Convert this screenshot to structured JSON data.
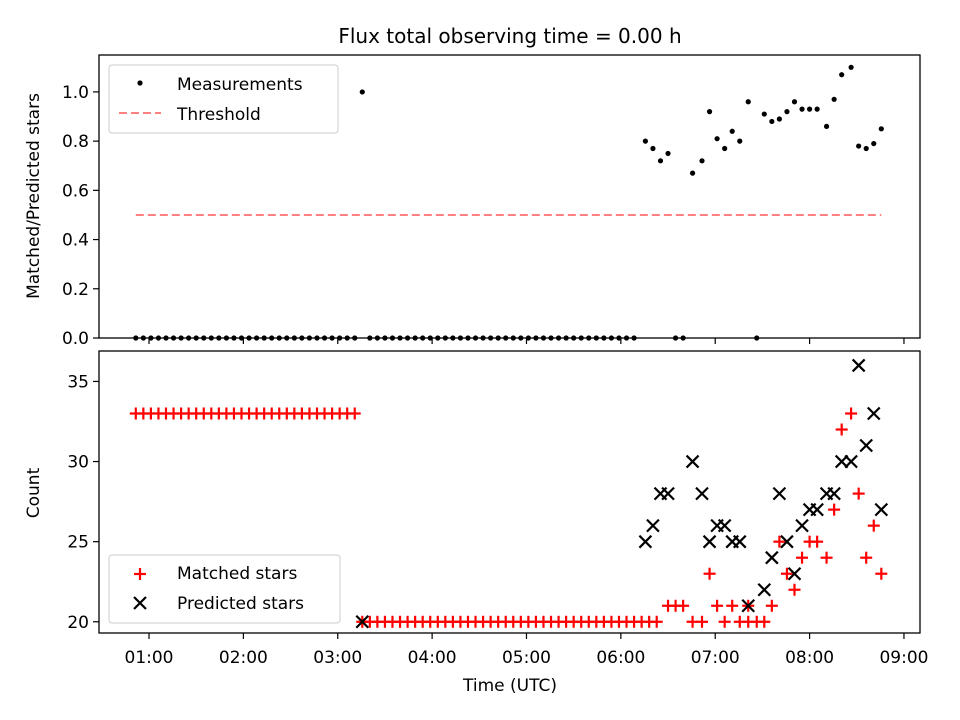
{
  "chart_data": {
    "title": "Flux total observing time = 0.00 h",
    "xlabel": "Time (UTC)",
    "x_unit": "hours UTC",
    "xlim": [
      0.47,
      9.17
    ],
    "x_ticks": [
      {
        "value": 1,
        "label": "01:00"
      },
      {
        "value": 2,
        "label": "02:00"
      },
      {
        "value": 3,
        "label": "03:00"
      },
      {
        "value": 4,
        "label": "04:00"
      },
      {
        "value": 5,
        "label": "05:00"
      },
      {
        "value": 6,
        "label": "06:00"
      },
      {
        "value": 7,
        "label": "07:00"
      },
      {
        "value": 8,
        "label": "08:00"
      },
      {
        "value": 9,
        "label": "09:00"
      }
    ],
    "panels": [
      {
        "type": "scatter",
        "ylabel": "Matched/Predicted stars",
        "ylim": [
          0,
          1.15
        ],
        "y_ticks": [
          "0.0",
          "0.2",
          "0.4",
          "0.6",
          "0.8",
          "1.0"
        ],
        "legend": "top-left",
        "series": [
          {
            "name": "Measurements",
            "kind": "scatter",
            "color": "#000000",
            "points": [
              [
                0.86,
                0
              ],
              [
                0.94,
                0
              ],
              [
                1.02,
                0
              ],
              [
                1.1,
                0
              ],
              [
                1.18,
                0
              ],
              [
                1.26,
                0
              ],
              [
                1.34,
                0
              ],
              [
                1.42,
                0
              ],
              [
                1.5,
                0
              ],
              [
                1.58,
                0
              ],
              [
                1.66,
                0
              ],
              [
                1.74,
                0
              ],
              [
                1.82,
                0
              ],
              [
                1.9,
                0
              ],
              [
                1.98,
                0
              ],
              [
                2.06,
                0
              ],
              [
                2.14,
                0
              ],
              [
                2.22,
                0
              ],
              [
                2.3,
                0
              ],
              [
                2.38,
                0
              ],
              [
                2.46,
                0
              ],
              [
                2.54,
                0
              ],
              [
                2.62,
                0
              ],
              [
                2.7,
                0
              ],
              [
                2.78,
                0
              ],
              [
                2.86,
                0
              ],
              [
                2.94,
                0
              ],
              [
                3.02,
                0
              ],
              [
                3.1,
                0
              ],
              [
                3.18,
                0
              ],
              [
                3.26,
                1.0
              ],
              [
                3.34,
                0
              ],
              [
                3.42,
                0
              ],
              [
                3.5,
                0
              ],
              [
                3.58,
                0
              ],
              [
                3.66,
                0
              ],
              [
                3.74,
                0
              ],
              [
                3.82,
                0
              ],
              [
                3.9,
                0
              ],
              [
                3.98,
                0
              ],
              [
                4.06,
                0
              ],
              [
                4.14,
                0
              ],
              [
                4.22,
                0
              ],
              [
                4.3,
                0
              ],
              [
                4.38,
                0
              ],
              [
                4.46,
                0
              ],
              [
                4.54,
                0
              ],
              [
                4.62,
                0
              ],
              [
                4.7,
                0
              ],
              [
                4.78,
                0
              ],
              [
                4.86,
                0
              ],
              [
                4.94,
                0
              ],
              [
                5.02,
                0
              ],
              [
                5.1,
                0
              ],
              [
                5.18,
                0
              ],
              [
                5.26,
                0
              ],
              [
                5.34,
                0
              ],
              [
                5.42,
                0
              ],
              [
                5.5,
                0
              ],
              [
                5.58,
                0
              ],
              [
                5.66,
                0
              ],
              [
                5.74,
                0
              ],
              [
                5.82,
                0
              ],
              [
                5.9,
                0
              ],
              [
                5.98,
                0
              ],
              [
                6.06,
                0
              ],
              [
                6.14,
                0
              ],
              [
                6.26,
                0.8
              ],
              [
                6.34,
                0.77
              ],
              [
                6.42,
                0.72
              ],
              [
                6.5,
                0.75
              ],
              [
                6.58,
                0
              ],
              [
                6.66,
                0
              ],
              [
                6.76,
                0.67
              ],
              [
                6.86,
                0.72
              ],
              [
                6.94,
                0.92
              ],
              [
                7.02,
                0.81
              ],
              [
                7.1,
                0.77
              ],
              [
                7.18,
                0.84
              ],
              [
                7.26,
                0.8
              ],
              [
                7.35,
                0.96
              ],
              [
                7.44,
                0
              ],
              [
                7.52,
                0.91
              ],
              [
                7.6,
                0.88
              ],
              [
                7.68,
                0.89
              ],
              [
                7.76,
                0.92
              ],
              [
                7.84,
                0.96
              ],
              [
                7.92,
                0.93
              ],
              [
                8.0,
                0.93
              ],
              [
                8.08,
                0.93
              ],
              [
                8.18,
                0.86
              ],
              [
                8.26,
                0.97
              ],
              [
                8.34,
                1.07
              ],
              [
                8.44,
                1.1
              ],
              [
                8.52,
                0.78
              ],
              [
                8.6,
                0.77
              ],
              [
                8.68,
                0.79
              ],
              [
                8.76,
                0.85
              ]
            ]
          },
          {
            "name": "Threshold",
            "kind": "dashed-line",
            "color": "#ff8080",
            "points": [
              [
                0.86,
                0.5
              ],
              [
                8.76,
                0.5
              ]
            ]
          }
        ]
      },
      {
        "type": "scatter",
        "ylabel": "Count",
        "ylim": [
          19.3,
          36.9
        ],
        "y_ticks": [
          "20",
          "25",
          "30",
          "35"
        ],
        "legend": "bottom-left",
        "series": [
          {
            "name": "Matched stars",
            "kind": "plus",
            "color": "#ff0000",
            "points": [
              [
                0.86,
                33
              ],
              [
                0.94,
                33
              ],
              [
                1.02,
                33
              ],
              [
                1.1,
                33
              ],
              [
                1.18,
                33
              ],
              [
                1.26,
                33
              ],
              [
                1.34,
                33
              ],
              [
                1.42,
                33
              ],
              [
                1.5,
                33
              ],
              [
                1.58,
                33
              ],
              [
                1.66,
                33
              ],
              [
                1.74,
                33
              ],
              [
                1.82,
                33
              ],
              [
                1.9,
                33
              ],
              [
                1.98,
                33
              ],
              [
                2.06,
                33
              ],
              [
                2.14,
                33
              ],
              [
                2.22,
                33
              ],
              [
                2.3,
                33
              ],
              [
                2.38,
                33
              ],
              [
                2.46,
                33
              ],
              [
                2.54,
                33
              ],
              [
                2.62,
                33
              ],
              [
                2.7,
                33
              ],
              [
                2.78,
                33
              ],
              [
                2.86,
                33
              ],
              [
                2.94,
                33
              ],
              [
                3.02,
                33
              ],
              [
                3.1,
                33
              ],
              [
                3.18,
                33
              ],
              [
                3.26,
                20
              ],
              [
                3.34,
                20
              ],
              [
                3.42,
                20
              ],
              [
                3.5,
                20
              ],
              [
                3.58,
                20
              ],
              [
                3.66,
                20
              ],
              [
                3.74,
                20
              ],
              [
                3.82,
                20
              ],
              [
                3.9,
                20
              ],
              [
                3.98,
                20
              ],
              [
                4.06,
                20
              ],
              [
                4.14,
                20
              ],
              [
                4.22,
                20
              ],
              [
                4.3,
                20
              ],
              [
                4.38,
                20
              ],
              [
                4.46,
                20
              ],
              [
                4.54,
                20
              ],
              [
                4.62,
                20
              ],
              [
                4.7,
                20
              ],
              [
                4.78,
                20
              ],
              [
                4.86,
                20
              ],
              [
                4.94,
                20
              ],
              [
                5.02,
                20
              ],
              [
                5.1,
                20
              ],
              [
                5.18,
                20
              ],
              [
                5.26,
                20
              ],
              [
                5.34,
                20
              ],
              [
                5.42,
                20
              ],
              [
                5.5,
                20
              ],
              [
                5.58,
                20
              ],
              [
                5.66,
                20
              ],
              [
                5.74,
                20
              ],
              [
                5.82,
                20
              ],
              [
                5.9,
                20
              ],
              [
                5.98,
                20
              ],
              [
                6.06,
                20
              ],
              [
                6.14,
                20
              ],
              [
                6.22,
                20
              ],
              [
                6.3,
                20
              ],
              [
                6.38,
                20
              ],
              [
                6.5,
                21
              ],
              [
                6.58,
                21
              ],
              [
                6.66,
                21
              ],
              [
                6.76,
                20
              ],
              [
                6.86,
                20
              ],
              [
                6.94,
                23
              ],
              [
                7.02,
                21
              ],
              [
                7.1,
                20
              ],
              [
                7.18,
                21
              ],
              [
                7.26,
                20
              ],
              [
                7.35,
                21
              ],
              [
                7.35,
                20
              ],
              [
                7.44,
                20
              ],
              [
                7.52,
                20
              ],
              [
                7.6,
                21
              ],
              [
                7.68,
                25
              ],
              [
                7.76,
                23
              ],
              [
                7.84,
                22
              ],
              [
                7.92,
                24
              ],
              [
                8.0,
                25
              ],
              [
                8.08,
                25
              ],
              [
                8.18,
                24
              ],
              [
                8.26,
                27
              ],
              [
                8.34,
                32
              ],
              [
                8.44,
                33
              ],
              [
                8.52,
                28
              ],
              [
                8.6,
                24
              ],
              [
                8.68,
                26
              ],
              [
                8.76,
                23
              ]
            ]
          },
          {
            "name": "Predicted stars",
            "kind": "x",
            "color": "#000000",
            "points": [
              [
                3.26,
                20
              ],
              [
                6.26,
                25
              ],
              [
                6.34,
                26
              ],
              [
                6.42,
                28
              ],
              [
                6.5,
                28
              ],
              [
                6.76,
                30
              ],
              [
                6.86,
                28
              ],
              [
                6.94,
                25
              ],
              [
                7.02,
                26
              ],
              [
                7.1,
                26
              ],
              [
                7.18,
                25
              ],
              [
                7.26,
                25
              ],
              [
                7.35,
                21
              ],
              [
                7.52,
                22
              ],
              [
                7.6,
                24
              ],
              [
                7.68,
                28
              ],
              [
                7.76,
                25
              ],
              [
                7.84,
                23
              ],
              [
                7.92,
                26
              ],
              [
                8.0,
                27
              ],
              [
                8.08,
                27
              ],
              [
                8.18,
                28
              ],
              [
                8.26,
                28
              ],
              [
                8.34,
                30
              ],
              [
                8.44,
                30
              ],
              [
                8.52,
                36
              ],
              [
                8.6,
                31
              ],
              [
                8.68,
                33
              ],
              [
                8.76,
                27
              ]
            ]
          }
        ]
      }
    ]
  }
}
